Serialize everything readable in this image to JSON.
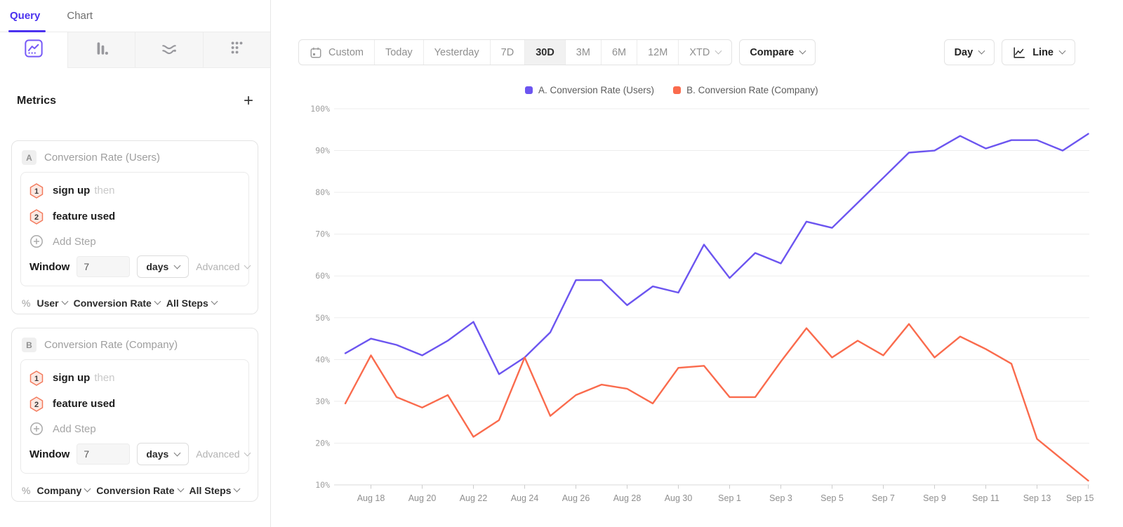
{
  "sidebar": {
    "tabs": [
      {
        "label": "Query"
      },
      {
        "label": "Chart"
      }
    ],
    "chart_type_icons": [
      "line-chart-icon",
      "bar-chart-icon",
      "flow-chart-icon",
      "scatter-chart-icon"
    ],
    "metrics_header": {
      "title": "Metrics",
      "add_label": "+"
    },
    "cards": [
      {
        "badge": "A",
        "title": "Conversion Rate (Users)",
        "steps": [
          {
            "num": "1",
            "event": "sign up",
            "suffix": "then"
          },
          {
            "num": "2",
            "event": "feature used",
            "suffix": ""
          }
        ],
        "add_step_label": "Add Step",
        "window": {
          "label": "Window",
          "value": "7",
          "unit": "days",
          "advanced_label": "Advanced"
        },
        "measure": {
          "prefix": "%",
          "entity": "User",
          "metric": "Conversion Rate",
          "steps": "All Steps"
        }
      },
      {
        "badge": "B",
        "title": "Conversion Rate (Company)",
        "steps": [
          {
            "num": "1",
            "event": "sign up",
            "suffix": "then"
          },
          {
            "num": "2",
            "event": "feature used",
            "suffix": ""
          }
        ],
        "add_step_label": "Add Step",
        "window": {
          "label": "Window",
          "value": "7",
          "unit": "days",
          "advanced_label": "Advanced"
        },
        "measure": {
          "prefix": "%",
          "entity": "Company",
          "metric": "Conversion Rate",
          "steps": "All Steps"
        }
      }
    ]
  },
  "toolbar": {
    "ranges": [
      {
        "label": "Custom"
      },
      {
        "label": "Today"
      },
      {
        "label": "Yesterday"
      },
      {
        "label": "7D"
      },
      {
        "label": "30D"
      },
      {
        "label": "3M"
      },
      {
        "label": "6M"
      },
      {
        "label": "12M"
      },
      {
        "label": "XTD"
      }
    ],
    "selected_range": "30D",
    "compare_label": "Compare",
    "granularity_label": "Day",
    "chart_type_label": "Line"
  },
  "chart_data": {
    "type": "line",
    "title": "",
    "xlabel": "",
    "ylabel": "",
    "ylim": [
      10,
      100
    ],
    "ytick_labels": [
      "100%",
      "90%",
      "80%",
      "70%",
      "60%",
      "50%",
      "40%",
      "30%",
      "20%",
      "10%"
    ],
    "grid": "horizontal",
    "legend_position": "top",
    "x": [
      "Aug 17",
      "Aug 18",
      "Aug 19",
      "Aug 20",
      "Aug 21",
      "Aug 22",
      "Aug 23",
      "Aug 24",
      "Aug 25",
      "Aug 26",
      "Aug 27",
      "Aug 28",
      "Aug 29",
      "Aug 30",
      "Aug 31",
      "Sep 1",
      "Sep 2",
      "Sep 3",
      "Sep 4",
      "Sep 5",
      "Sep 6",
      "Sep 7",
      "Sep 8",
      "Sep 9",
      "Sep 10",
      "Sep 11",
      "Sep 12",
      "Sep 13",
      "Sep 14",
      "Sep 15"
    ],
    "x_tick_labels": [
      "Aug 18",
      "Aug 20",
      "Aug 22",
      "Aug 24",
      "Aug 26",
      "Aug 28",
      "Aug 30",
      "Sep 1",
      "Sep 3",
      "Sep 5",
      "Sep 7",
      "Sep 9",
      "Sep 11",
      "Sep 13",
      "Sep 15"
    ],
    "series": [
      {
        "name": "A. Conversion Rate (Users)",
        "color": "#6c55f0",
        "values": [
          41.5,
          45,
          43.5,
          41,
          44.5,
          49,
          36.5,
          40.5,
          46.5,
          59,
          59,
          53,
          57.5,
          56,
          67.5,
          59.5,
          65.5,
          63,
          73,
          71.5,
          77.5,
          83.5,
          89.5,
          90,
          93.5,
          90.5,
          92.5,
          92.5,
          90,
          94
        ]
      },
      {
        "name": "B. Conversion Rate (Company)",
        "color": "#fa6b4d",
        "values": [
          29.5,
          41,
          31,
          28.5,
          31.5,
          21.5,
          25.5,
          40.5,
          26.5,
          31.5,
          34,
          33,
          29.5,
          38,
          38.5,
          31,
          31,
          39.5,
          47.5,
          40.5,
          44.5,
          41,
          48.5,
          40.5,
          45.5,
          42.5,
          39,
          21,
          16,
          11
        ]
      }
    ]
  }
}
